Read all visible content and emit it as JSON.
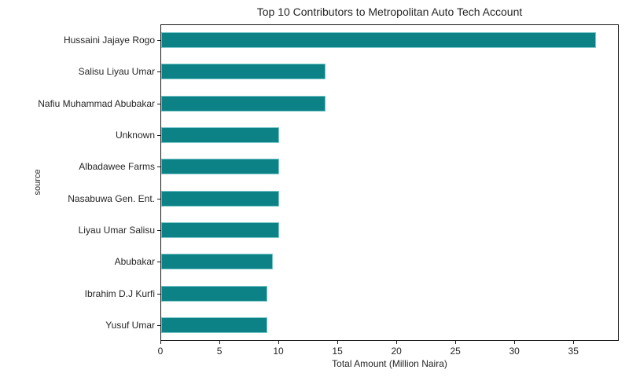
{
  "chart_data": {
    "type": "bar",
    "orientation": "horizontal",
    "title": "Top 10 Contributors to Metropolitan Auto Tech Account",
    "xlabel": "Total Amount (Million Naira)",
    "ylabel": "source",
    "categories": [
      "Hussaini Jajaye Rogo",
      "Salisu Liyau Umar",
      "Nafiu Muhammad Abubakar",
      "Unknown",
      "Albadawee Farms",
      "Nasabuwa Gen. Ent.",
      "Liyau Umar Salisu",
      "Abubakar",
      "Ibrahim D.J Kurfi",
      "Yusuf Umar"
    ],
    "values": [
      37,
      14,
      14,
      10,
      10,
      10,
      10,
      9.5,
      9,
      9
    ],
    "xticks": [
      0,
      5,
      10,
      15,
      20,
      25,
      30,
      35
    ],
    "xlim": [
      0,
      38.85
    ],
    "bar_color": "#0c8286",
    "grid": false,
    "legend": null,
    "background_color": "#ffffff"
  }
}
